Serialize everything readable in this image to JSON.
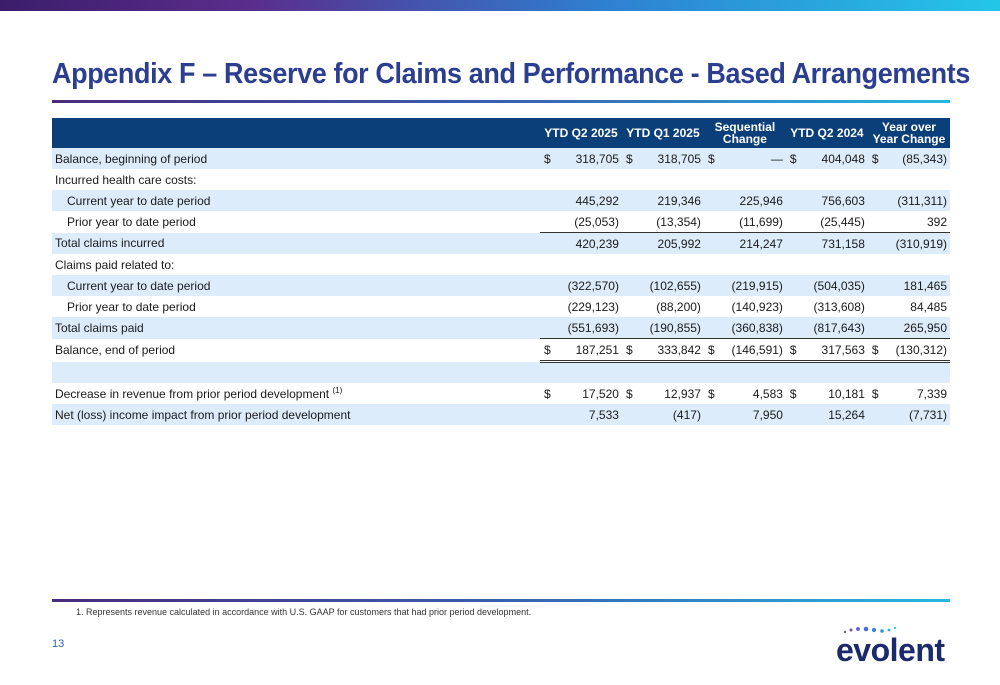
{
  "title": "Appendix F – Reserve for Claims and Performance - Based Arrangements",
  "columns": [
    "YTD Q2 2025",
    "YTD Q1 2025",
    "Sequential Change",
    "YTD Q2 2024",
    "Year over Year Change"
  ],
  "col_lines": [
    [
      "YTD Q2 2025"
    ],
    [
      "YTD Q1 2025"
    ],
    [
      "Sequential",
      "Change"
    ],
    [
      "YTD Q2 2024"
    ],
    [
      "Year over",
      "Year Change"
    ]
  ],
  "rows": [
    {
      "label": "Balance, beginning of period",
      "dollar": true,
      "values": [
        "318,705",
        "318,705",
        "—",
        "404,048",
        "(85,343)"
      ]
    },
    {
      "label": "Incurred health care costs:",
      "values": []
    },
    {
      "label": "Current year to date period",
      "values": [
        "445,292",
        "219,346",
        "225,946",
        "756,603",
        "(311,311)"
      ]
    },
    {
      "label": "Prior year to date period",
      "values": [
        "(25,053)",
        "(13,354)",
        "(11,699)",
        "(25,445)",
        "392"
      ]
    },
    {
      "label": "Total claims incurred",
      "values": [
        "420,239",
        "205,992",
        "214,247",
        "731,158",
        "(310,919)"
      ]
    },
    {
      "label": "Claims paid related to:",
      "values": []
    },
    {
      "label": "Current year to date period",
      "values": [
        "(322,570)",
        "(102,655)",
        "(219,915)",
        "(504,035)",
        "181,465"
      ]
    },
    {
      "label": "Prior year to date period",
      "values": [
        "(229,123)",
        "(88,200)",
        "(140,923)",
        "(313,608)",
        "84,485"
      ]
    },
    {
      "label": "Total claims paid",
      "values": [
        "(551,693)",
        "(190,855)",
        "(360,838)",
        "(817,643)",
        "265,950"
      ]
    },
    {
      "label": "Balance, end of period",
      "dollar": true,
      "values": [
        "187,251",
        "333,842",
        "(146,591)",
        "317,563",
        "(130,312)"
      ]
    },
    {
      "label": "Decrease in revenue from prior period development",
      "note": "(1)",
      "dollar": true,
      "values": [
        "17,520",
        "12,937",
        "4,583",
        "10,181",
        "7,339"
      ]
    },
    {
      "label": "Net (loss) income impact from prior period development",
      "values": [
        "7,533",
        "(417)",
        "7,950",
        "15,264",
        "(7,731)"
      ]
    }
  ],
  "currency_symbol": "$",
  "footnote": "1. Represents revenue calculated in accordance with U.S. GAAP for customers that had prior period development.",
  "page_number": "13",
  "logo_text": "evolent",
  "colors": {
    "title": "#2c3e8f",
    "header_bg": "#0b3f7a",
    "row_shade": "#dcecfb"
  }
}
